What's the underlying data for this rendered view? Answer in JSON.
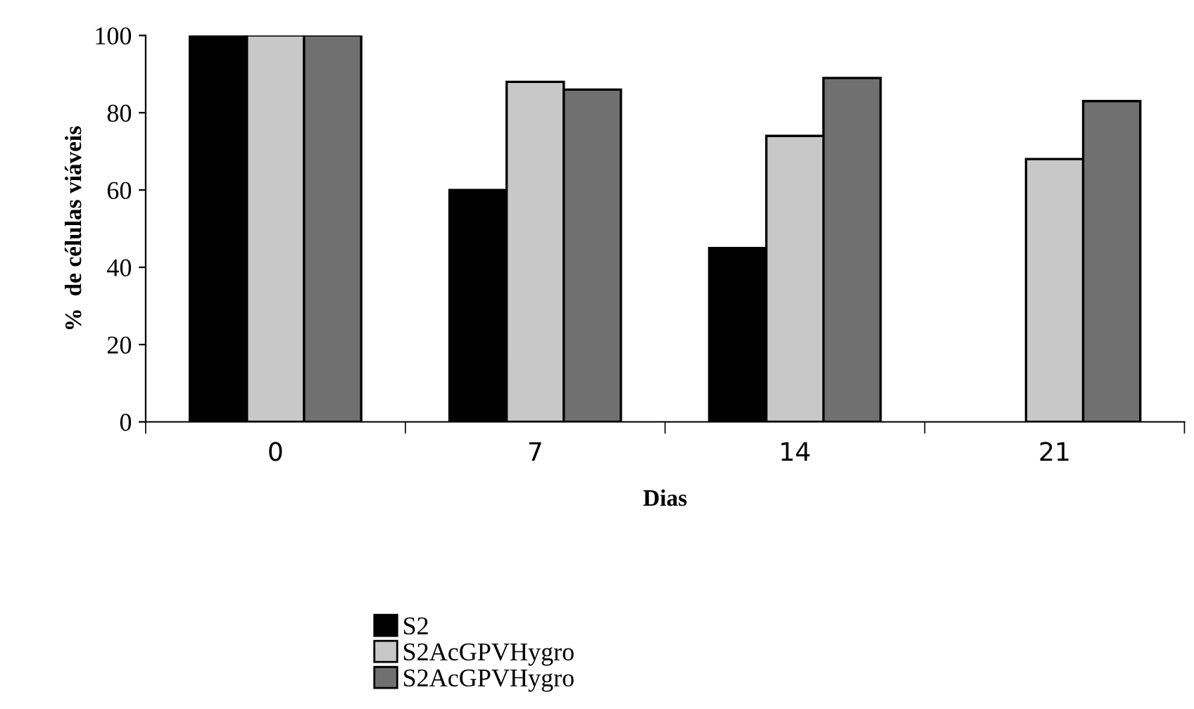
{
  "chart_data": {
    "type": "bar",
    "xlabel": "Dias",
    "ylabel": "%  de células viáveis",
    "categories": [
      "0",
      "7",
      "14",
      "21"
    ],
    "series": [
      {
        "name": "S2",
        "color": "#000000",
        "values": [
          100,
          60,
          45,
          null
        ]
      },
      {
        "name": "S2AcGPVHygro",
        "color": "#c8c8c8",
        "values": [
          100,
          88,
          74,
          68
        ]
      },
      {
        "name": "S2AcGPVHygro",
        "color": "#707070",
        "values": [
          100,
          86,
          89,
          83
        ]
      }
    ],
    "ylim": [
      0,
      100
    ],
    "yticks": [
      0,
      20,
      40,
      60,
      80,
      100
    ],
    "grid": false,
    "legend": "bottom"
  }
}
